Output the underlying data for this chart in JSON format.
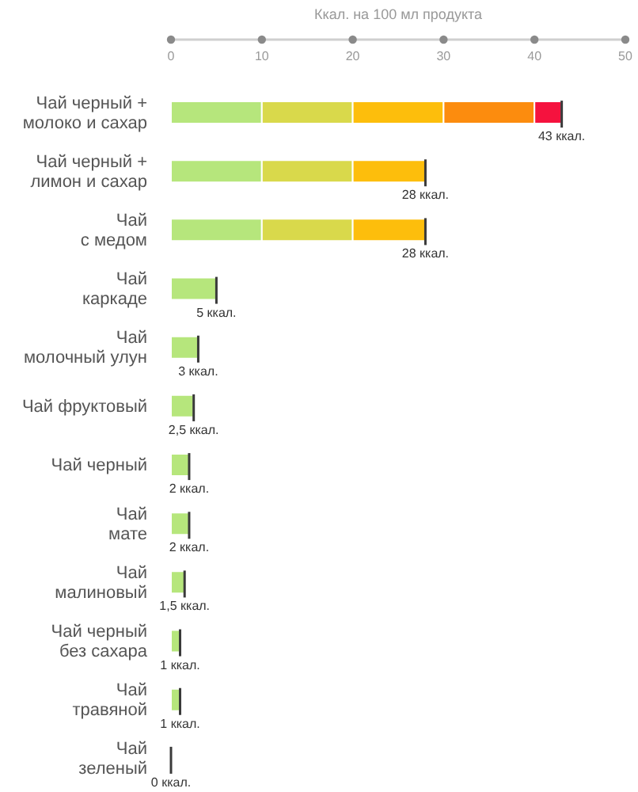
{
  "chart_data": {
    "type": "bar",
    "orientation": "horizontal",
    "stacked": true,
    "xlabel": "Ккал. на 100 мл продукта",
    "categories": [
      "Чай черный +\nмолоко и сахар",
      "Чай черный +\nлимон и сахар",
      "Чай\nс медом",
      "Чай\nкаркаде",
      "Чай\nмолочный улун",
      "Чай фруктовый",
      "Чай черный",
      "Чай\nмате",
      "Чай\nмалиновый",
      "Чай черный\nбез сахара",
      "Чай\nтравяной",
      "Чай\nзеленый"
    ],
    "series": [
      {
        "color": "#b6e67c",
        "values": [
          10,
          10,
          10,
          5,
          3,
          2.5,
          2,
          2,
          1.5,
          1,
          1,
          0
        ]
      },
      {
        "color": "#d9d94b",
        "values": [
          10,
          10,
          10,
          null,
          null,
          null,
          null,
          null,
          null,
          null,
          null,
          null
        ]
      },
      {
        "color": "#fdbe0c",
        "values": [
          10,
          8,
          8,
          null,
          null,
          null,
          null,
          null,
          null,
          null,
          null,
          null
        ]
      },
      {
        "color": "#fc8c0e",
        "values": [
          10,
          null,
          null,
          null,
          null,
          null,
          null,
          null,
          null,
          null,
          null,
          null
        ]
      },
      {
        "color": "#f5123e",
        "values": [
          3,
          null,
          null,
          null,
          null,
          null,
          null,
          null,
          null,
          null,
          null,
          null
        ]
      }
    ],
    "totals": [
      "43 ккал.",
      "28 ккал.",
      "28 ккал.",
      "5 ккал.",
      "3 ккал.",
      "2,5 ккал.",
      "2 ккал.",
      "2 ккал.",
      "1,5 ккал.",
      "1 ккал.",
      "1 ккал.",
      "0 ккал."
    ],
    "xlim": [
      0,
      50
    ],
    "xticks": [
      0,
      10,
      20,
      30,
      40,
      50
    ]
  }
}
